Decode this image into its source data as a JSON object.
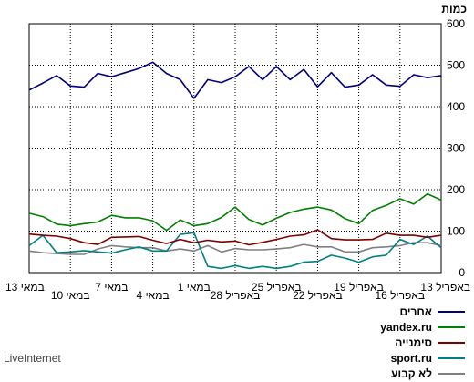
{
  "chart_data": {
    "type": "line",
    "ylabel": "כמות",
    "ylim": [
      0,
      600
    ],
    "yticks": [
      0,
      100,
      200,
      300,
      400,
      500,
      600
    ],
    "grid": "on",
    "legend_position": "bottom-right",
    "x": [
      "13 במאי",
      "12 במאי",
      "11 במאי",
      "10 במאי",
      "9 במאי",
      "8 במאי",
      "7 במאי",
      "6 במאי",
      "5 במאי",
      "4 במאי",
      "3 במאי",
      "2 במאי",
      "1 במאי",
      "30 באפריל",
      "29 באפריל",
      "28 באפריל",
      "27 באפריל",
      "26 באפריל",
      "25 באפריל",
      "24 באפריל",
      "23 באפריל",
      "22 באפריל",
      "21 באפריל",
      "20 באפריל",
      "19 באפריל",
      "18 באפריל",
      "17 באפריל",
      "16 באפריל",
      "15 באפריל",
      "14 באפריל",
      "13 באפריל"
    ],
    "xticks": [
      {
        "label": "13 במאי",
        "row": 0
      },
      {
        "label": "10 במאי",
        "row": 1
      },
      {
        "label": "7 במאי",
        "row": 0
      },
      {
        "label": "4 במאי",
        "row": 1
      },
      {
        "label": "1 במאי",
        "row": 0
      },
      {
        "label": "28 באפריל",
        "row": 1
      },
      {
        "label": "25 באפריל",
        "row": 0
      },
      {
        "label": "22 באפריל",
        "row": 1
      },
      {
        "label": "19 באפריל",
        "row": 0
      },
      {
        "label": "16 באפריל",
        "row": 1
      },
      {
        "label": "13 באפריל",
        "row": 0
      }
    ],
    "series": [
      {
        "name": "אחרים",
        "color": "#000080",
        "values": [
          440,
          457,
          475,
          450,
          447,
          480,
          472,
          482,
          492,
          507,
          480,
          465,
          420,
          465,
          458,
          472,
          497,
          465,
          497,
          465,
          490,
          448,
          482,
          447,
          452,
          477,
          452,
          449,
          477,
          470,
          475
        ]
      },
      {
        "name": "yandex.ru",
        "color": "#008000",
        "values": [
          143,
          135,
          117,
          113,
          118,
          122,
          138,
          132,
          132,
          125,
          102,
          127,
          113,
          118,
          133,
          158,
          128,
          115,
          131,
          145,
          153,
          158,
          151,
          130,
          118,
          150,
          162,
          178,
          165,
          190,
          175
        ]
      },
      {
        "name": "סימנייה",
        "color": "#800000",
        "values": [
          93,
          90,
          88,
          82,
          72,
          68,
          85,
          86,
          87,
          78,
          70,
          80,
          72,
          78,
          74,
          76,
          67,
          73,
          80,
          88,
          91,
          103,
          82,
          79,
          79,
          80,
          95,
          90,
          90,
          85,
          90
        ]
      },
      {
        "name": "sport.ru",
        "color": "#008080",
        "values": [
          65,
          90,
          48,
          50,
          53,
          50,
          47,
          55,
          62,
          52,
          52,
          92,
          96,
          15,
          10,
          17,
          10,
          15,
          10,
          15,
          25,
          27,
          42,
          35,
          25,
          38,
          42,
          80,
          68,
          88,
          60
        ]
      },
      {
        "name": "לא קבוע",
        "color": "#808080",
        "values": [
          52,
          48,
          46,
          44,
          44,
          57,
          65,
          62,
          60,
          60,
          52,
          57,
          52,
          65,
          50,
          58,
          55,
          55,
          57,
          60,
          68,
          62,
          62,
          50,
          50,
          60,
          62,
          65,
          72,
          72,
          65
        ]
      }
    ]
  },
  "footer": {
    "brand": "LiveInternet"
  }
}
